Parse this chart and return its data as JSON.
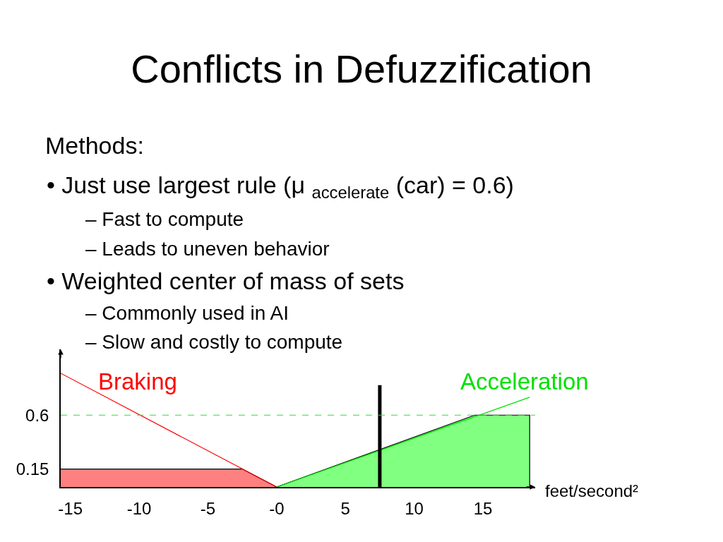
{
  "chart_data": {
    "type": "line",
    "title": "Conflicts in Defuzzification",
    "xlabel": "feet/second²",
    "annotations": [
      "Methods:",
      "• Just use largest rule (μ $_{accelerate}$ (car) = 0.6)",
      "– Fast to compute",
      "– Leads to uneven behavior",
      "• Weighted center of mass of sets",
      "– Commonly used in AI",
      "– Slow and costly to compute"
    ],
    "series": [
      {
        "type": "area",
        "color": "#ff8080",
        "x": [
          -15.7,
          -2.5,
          0
        ],
        "values": [
          0.15,
          0.15,
          0
        ]
      },
      {
        "type": "area",
        "color": "#80ff80",
        "x": [
          0,
          14.4,
          18.4,
          18.4
        ],
        "values": [
          0,
          0.6,
          0.6,
          0
        ]
      },
      {
        "name": "Braking",
        "color": "#ff0000",
        "x": [
          -15.7,
          0
        ],
        "values": [
          0.95,
          0
        ]
      },
      {
        "name": "Acceleration",
        "color": "#00e000",
        "x": [
          0,
          18.4
        ],
        "values": [
          0,
          0.75
        ]
      },
      {
        "color": "#000000",
        "x": [
          7.5,
          7.5
        ],
        "values": [
          0,
          0.85
        ]
      }
    ],
    "xlim": [
      -15.7,
      18.8
    ],
    "ylim": [
      0,
      1.15
    ],
    "xticks": [
      -15,
      -10,
      -5,
      {
        "value": 0,
        "label": "-0"
      },
      5,
      10,
      15
    ],
    "yticks": [
      0.15,
      0.6
    ],
    "ref_lines": [
      {
        "axis": "y",
        "value": 0.6,
        "color": "#33dd33",
        "line_style": "dashed"
      }
    ],
    "legend": false
  }
}
